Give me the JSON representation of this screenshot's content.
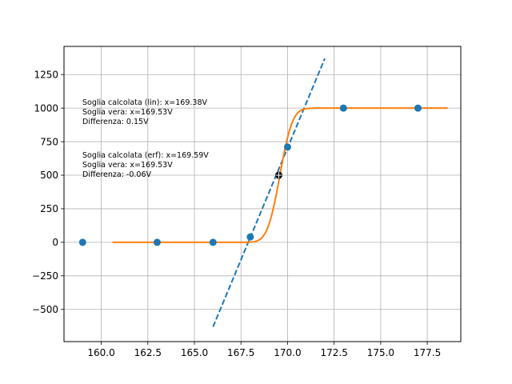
{
  "chart_data": {
    "type": "scatter",
    "xlim": [
      158.0,
      179.3
    ],
    "ylim": [
      -740,
      1460
    ],
    "x_ticks": [
      160.0,
      162.5,
      165.0,
      167.5,
      170.0,
      172.5,
      175.0,
      177.5
    ],
    "x_tick_labels": [
      "160.0",
      "162.5",
      "165.0",
      "167.5",
      "170.0",
      "172.5",
      "175.0",
      "177.5"
    ],
    "y_ticks": [
      -500,
      -250,
      0,
      250,
      500,
      750,
      1000,
      1250
    ],
    "y_tick_labels": [
      "−500",
      "−250",
      "0",
      "250",
      "500",
      "750",
      "1000",
      "1250"
    ],
    "grid": true,
    "series": [
      {
        "kind": "scatter",
        "color": "#1f77b4",
        "x": [
          159.0,
          163.0,
          166.0,
          168.0,
          170.0,
          173.0,
          177.0
        ],
        "y": [
          0,
          0,
          0,
          40,
          710,
          1000,
          1000
        ]
      },
      {
        "kind": "line",
        "style": "dashed",
        "color": "#1f77b4",
        "x": [
          166.0,
          172.0
        ],
        "y": [
          -630,
          1370
        ]
      },
      {
        "kind": "line",
        "style": "solid",
        "color": "#ff7f0e",
        "model": "erf",
        "center": 169.59,
        "width": 0.75,
        "amplitude": 1000,
        "x_range": [
          160.6,
          178.6
        ]
      },
      {
        "kind": "marker",
        "color": "#000000",
        "x": 169.53,
        "y": 500
      }
    ],
    "annotations": [
      {
        "lines": [
          "Soglia calcolata (lin): x=169.38V",
          "Soglia vera: x=169.53V",
          "Differenza: 0.15V"
        ]
      },
      {
        "lines": [
          "Soglia calcolata (erf): x=169.59V",
          "Soglia vera: x=169.53V",
          "Differenza: -0.06V"
        ]
      }
    ]
  }
}
